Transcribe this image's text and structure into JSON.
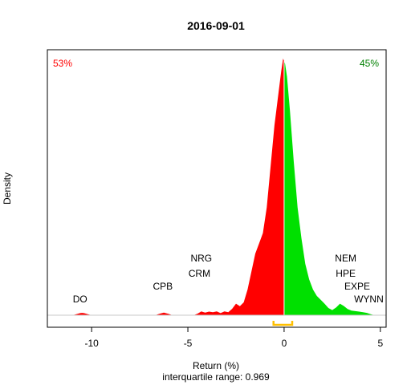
{
  "chart_data": {
    "type": "area",
    "title": "2016-09-01",
    "xlabel": "Return (%)",
    "ylabel": "Density",
    "subtitle": "interquartile range: 0.969",
    "xlim": [
      -12.3,
      5.3
    ],
    "ylim": [
      0,
      1
    ],
    "x_ticks": [
      -10,
      -5,
      0,
      5
    ],
    "negative_share": "53%",
    "positive_share": "45%",
    "colors": {
      "negative": "#ff0000",
      "positive": "#00e000",
      "iqr": "#ffc000",
      "divider": "#ffffff",
      "baseline": "#c8c8c8"
    },
    "iqr": [
      -0.55,
      0.42
    ],
    "density": {
      "x": [
        -11.0,
        -10.8,
        -10.6,
        -10.5,
        -10.4,
        -10.2,
        -10.0,
        -6.7,
        -6.5,
        -6.25,
        -6.0,
        -5.8,
        -4.7,
        -4.5,
        -4.3,
        -4.1,
        -3.9,
        -3.7,
        -3.5,
        -3.3,
        -3.1,
        -2.9,
        -2.7,
        -2.5,
        -2.3,
        -2.1,
        -1.9,
        -1.7,
        -1.5,
        -1.3,
        -1.1,
        -0.9,
        -0.7,
        -0.5,
        -0.3,
        -0.15,
        -0.05,
        0,
        0.05,
        0.15,
        0.3,
        0.5,
        0.7,
        0.9,
        1.1,
        1.3,
        1.5,
        1.7,
        1.9,
        2.1,
        2.3,
        2.5,
        2.7,
        2.9,
        3.1,
        3.3,
        3.5,
        3.7,
        3.9,
        4.1,
        4.3,
        4.5,
        4.7
      ],
      "y": [
        0.0,
        0.004,
        0.008,
        0.009,
        0.008,
        0.004,
        0.0,
        0.0,
        0.005,
        0.01,
        0.005,
        0.0,
        0.0,
        0.006,
        0.015,
        0.01,
        0.014,
        0.012,
        0.015,
        0.008,
        0.015,
        0.012,
        0.025,
        0.045,
        0.035,
        0.05,
        0.1,
        0.17,
        0.24,
        0.28,
        0.32,
        0.42,
        0.58,
        0.74,
        0.86,
        0.95,
        1.0,
        0.99,
        0.98,
        0.93,
        0.8,
        0.6,
        0.42,
        0.3,
        0.2,
        0.14,
        0.1,
        0.075,
        0.06,
        0.045,
        0.028,
        0.02,
        0.03,
        0.045,
        0.036,
        0.024,
        0.018,
        0.016,
        0.014,
        0.012,
        0.009,
        0.004,
        0.0
      ]
    },
    "annotations": [
      {
        "label": "DO",
        "x": -10.6,
        "y": 0.05
      },
      {
        "label": "CPB",
        "x": -6.3,
        "y": 0.1
      },
      {
        "label": "NRG",
        "x": -4.3,
        "y": 0.21
      },
      {
        "label": "CRM",
        "x": -4.4,
        "y": 0.15
      },
      {
        "label": "NEM",
        "x": 3.2,
        "y": 0.21
      },
      {
        "label": "HPE",
        "x": 3.2,
        "y": 0.15
      },
      {
        "label": "EXPE",
        "x": 3.8,
        "y": 0.1
      },
      {
        "label": "WYNN",
        "x": 4.4,
        "y": 0.05
      }
    ]
  }
}
